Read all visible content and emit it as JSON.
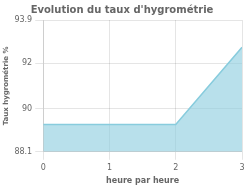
{
  "chart_data": {
    "type": "area",
    "title": "Evolution du taux d'hygrométrie",
    "xlabel": "heure par heure",
    "ylabel": "Taux hygrométrie %",
    "x": [
      0,
      2,
      3
    ],
    "values": [
      89.3,
      89.3,
      92.7
    ],
    "color": "#88ccdd",
    "xlim": [
      0,
      3
    ],
    "ylim": [
      88.1,
      93.9
    ],
    "xticks": [
      0,
      1,
      2,
      3
    ],
    "yticks": [
      88.1,
      90,
      92,
      93.9
    ],
    "grid": true
  }
}
